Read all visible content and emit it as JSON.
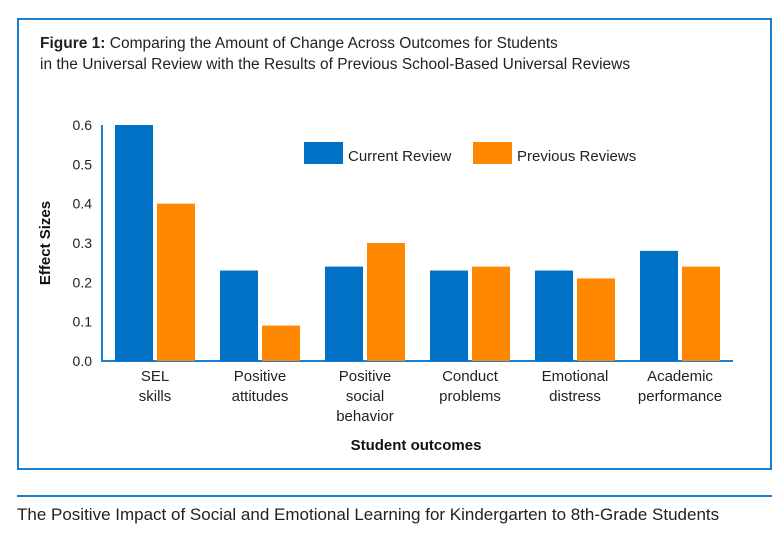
{
  "title_prefix": "Figure 1:",
  "title_line1": "Comparing the Amount of Change Across Outcomes for Students",
  "title_line2": "in the Universal Review with the Results of Previous School-Based Universal Reviews",
  "caption": "The Positive Impact of Social and Emotional Learning for Kindergarten to 8th-Grade Students",
  "chart_data": {
    "type": "bar",
    "xlabel": "Student outcomes",
    "ylabel": "Effect Sizes",
    "ylim": [
      0,
      0.6
    ],
    "yticks": [
      "0.0",
      "0.1",
      "0.2",
      "0.3",
      "0.4",
      "0.5",
      "0.6"
    ],
    "grid": false,
    "legend": "top-right",
    "categories": [
      [
        "SEL",
        "skills"
      ],
      [
        "Positive",
        "attitudes"
      ],
      [
        "Positive",
        "social",
        "behavior"
      ],
      [
        "Conduct",
        "problems"
      ],
      [
        "Emotional",
        "distress"
      ],
      [
        "Academic",
        "performance"
      ]
    ],
    "series": [
      {
        "name": "Current Review",
        "color": "#0071c5",
        "values": [
          0.6,
          0.23,
          0.24,
          0.23,
          0.23,
          0.28
        ]
      },
      {
        "name": "Previous Reviews",
        "color": "#ff8800",
        "values": [
          0.4,
          0.09,
          0.3,
          0.24,
          0.21,
          0.24
        ]
      }
    ]
  }
}
